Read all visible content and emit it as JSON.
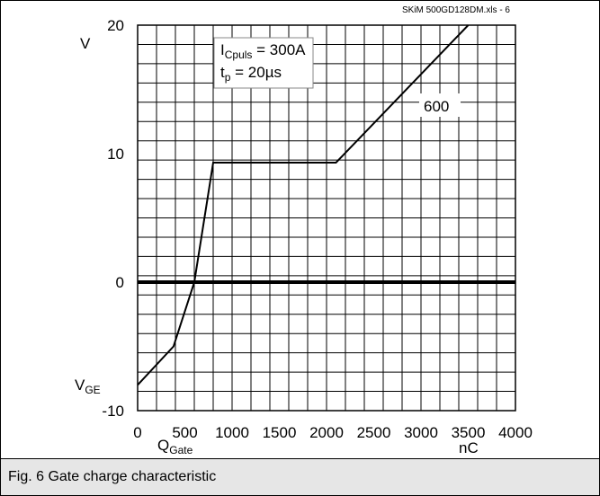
{
  "source_label": "SKiM 500GD128DM.xls - 6",
  "caption": "Fig. 6 Gate charge characteristic",
  "chart_data": {
    "type": "line",
    "ylabel_unit": "V",
    "ylabel_main": "V",
    "ylabel_sub": "GE",
    "xlabel_main": "Q",
    "xlabel_sub": "Gate",
    "xlabel_unit": "nC",
    "xlim": [
      0,
      4000
    ],
    "ylim": [
      -10,
      20
    ],
    "x_ticks": [
      "0",
      "500",
      "1000",
      "1500",
      "2000",
      "2500",
      "3000",
      "3500",
      "4000"
    ],
    "y_ticks": [
      "20",
      "10",
      "0",
      "-10"
    ],
    "grid": true,
    "annotation_box": {
      "line1_main": "I",
      "line1_sub": "Cpuls",
      "line1_rest": " = 300A",
      "line2_main": "t",
      "line2_sub": "p",
      "line2_rest": " = 20µs"
    },
    "series": [
      {
        "name": "600",
        "x": [
          0,
          380,
          600,
          800,
          2100,
          3500
        ],
        "y": [
          -8,
          -5,
          0,
          9.3,
          9.3,
          20
        ]
      }
    ]
  }
}
